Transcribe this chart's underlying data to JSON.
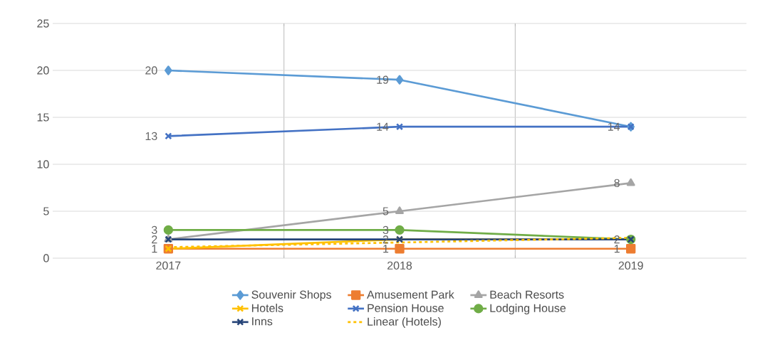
{
  "chart_data": {
    "type": "line",
    "categories": [
      "2017",
      "2018",
      "2019"
    ],
    "ylim": [
      0,
      25
    ],
    "yticks": [
      0,
      5,
      10,
      15,
      20,
      25
    ],
    "grid": true,
    "legend": "bottom",
    "series": [
      {
        "name": "Souvenir Shops",
        "color": "#5b9bd5",
        "marker": "diamond",
        "values": [
          20,
          19,
          14
        ],
        "value_labels": [
          "20",
          "19",
          null
        ]
      },
      {
        "name": "Amusement Park",
        "color": "#ed7d31",
        "marker": "square",
        "values": [
          1,
          1,
          1
        ],
        "value_labels": [
          "1",
          "1",
          "1"
        ]
      },
      {
        "name": "Beach Resorts",
        "color": "#a5a5a5",
        "marker": "triangle",
        "values": [
          2,
          5,
          8
        ],
        "value_labels": [
          null,
          "5",
          "8"
        ]
      },
      {
        "name": "Hotels",
        "color": "#ffc000",
        "marker": "cross",
        "values": [
          1,
          2,
          2
        ]
      },
      {
        "name": "Pension House",
        "color": "#4472c4",
        "marker": "cross",
        "values": [
          13,
          14,
          14
        ],
        "value_labels": [
          "13",
          "14",
          "14"
        ]
      },
      {
        "name": "Lodging House",
        "color": "#70ad47",
        "marker": "circle",
        "values": [
          3,
          3,
          2
        ],
        "value_labels": [
          "3",
          "3",
          null
        ]
      },
      {
        "name": "Inns",
        "color": "#264478",
        "marker": "cross",
        "values": [
          2,
          2,
          2
        ],
        "value_labels": [
          "2",
          "2",
          "2"
        ]
      },
      {
        "name": "Linear (Hotels)",
        "color": "#ffc000",
        "marker": "none",
        "line_style": "dashed",
        "values": [
          1.17,
          1.67,
          2.17
        ]
      }
    ]
  }
}
